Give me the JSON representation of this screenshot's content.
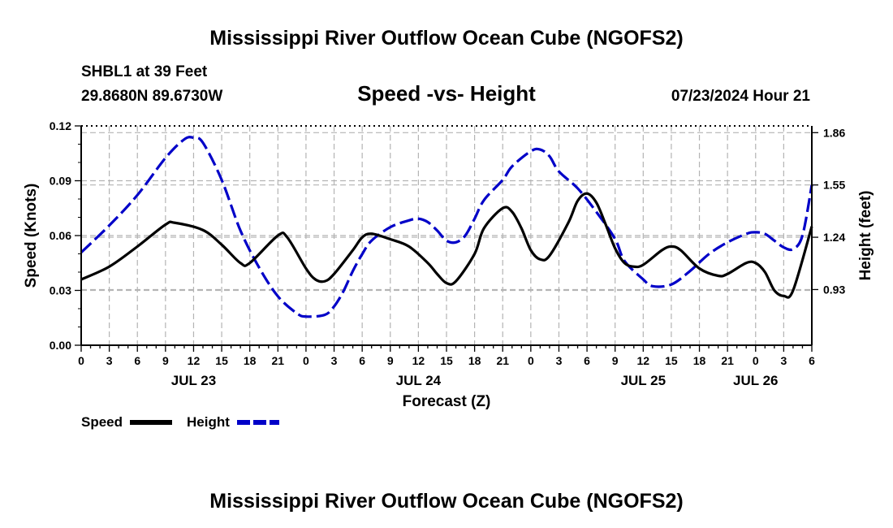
{
  "page": {
    "title": "Mississippi River Outflow Ocean Cube (NGOFS2)",
    "footer_title": "Mississippi River Outflow Ocean Cube (NGOFS2)"
  },
  "station": {
    "name": "SHBL1 at 39 Feet",
    "coords": "29.8680N  89.6730W",
    "datetime": "07/23/2024 Hour 21"
  },
  "chart_data": {
    "type": "line",
    "title": "Speed -vs- Height",
    "xlabel": "Forecast (Z)",
    "ylabel_left": "Speed (Knots)",
    "ylabel_right": "Height (feet)",
    "x_range_hours": [
      0,
      78
    ],
    "x_tick_step_hours": 3,
    "x_tick_labels": [
      "0",
      "3",
      "6",
      "9",
      "12",
      "15",
      "18",
      "21",
      "0",
      "3",
      "6",
      "9",
      "12",
      "15",
      "18",
      "21",
      "0",
      "3",
      "6",
      "9",
      "12",
      "15",
      "18",
      "21",
      "0",
      "3",
      "6"
    ],
    "date_labels": [
      {
        "label": "JUL 23",
        "hour": 12
      },
      {
        "label": "JUL 24",
        "hour": 36
      },
      {
        "label": "JUL 25",
        "hour": 60
      },
      {
        "label": "JUL 26",
        "hour": 72
      }
    ],
    "y_left": {
      "range": [
        0,
        0.12
      ],
      "ticks": [
        "0.00",
        "0.03",
        "0.06",
        "0.09",
        "0.12"
      ]
    },
    "y_right": {
      "range": [
        0.6,
        1.9
      ],
      "ticks": [
        "0.93",
        "1.24",
        "1.55",
        "1.86"
      ]
    },
    "series": [
      {
        "name": "Speed",
        "axis": "left",
        "color": "#000000",
        "dash": "solid",
        "points": [
          [
            0,
            0.036
          ],
          [
            3,
            0.043
          ],
          [
            6,
            0.054
          ],
          [
            9,
            0.066
          ],
          [
            10,
            0.067
          ],
          [
            13,
            0.063
          ],
          [
            15,
            0.055
          ],
          [
            17,
            0.045
          ],
          [
            18,
            0.045
          ],
          [
            21,
            0.06
          ],
          [
            22,
            0.059
          ],
          [
            24,
            0.042
          ],
          [
            25,
            0.036
          ],
          [
            26,
            0.035
          ],
          [
            27,
            0.039
          ],
          [
            29,
            0.052
          ],
          [
            30,
            0.059
          ],
          [
            31,
            0.061
          ],
          [
            33,
            0.058
          ],
          [
            35,
            0.054
          ],
          [
            37,
            0.045
          ],
          [
            38,
            0.039
          ],
          [
            39,
            0.034
          ],
          [
            40,
            0.035
          ],
          [
            42,
            0.05
          ],
          [
            43,
            0.064
          ],
          [
            45,
            0.075
          ],
          [
            46,
            0.073
          ],
          [
            47,
            0.064
          ],
          [
            48,
            0.052
          ],
          [
            49,
            0.047
          ],
          [
            50,
            0.049
          ],
          [
            52,
            0.067
          ],
          [
            53,
            0.079
          ],
          [
            54,
            0.083
          ],
          [
            55,
            0.078
          ],
          [
            56,
            0.066
          ],
          [
            57,
            0.053
          ],
          [
            58,
            0.045
          ],
          [
            59,
            0.043
          ],
          [
            60,
            0.044
          ],
          [
            62,
            0.052
          ],
          [
            63,
            0.054
          ],
          [
            64,
            0.052
          ],
          [
            66,
            0.042
          ],
          [
            68,
            0.038
          ],
          [
            69,
            0.039
          ],
          [
            71,
            0.045
          ],
          [
            72,
            0.045
          ],
          [
            73,
            0.04
          ],
          [
            74,
            0.03
          ],
          [
            75,
            0.027
          ],
          [
            76,
            0.03
          ],
          [
            78,
            0.065
          ]
        ]
      },
      {
        "name": "Height",
        "axis": "right",
        "color": "#0000c8",
        "dash": "dashed",
        "points": [
          [
            0,
            1.15
          ],
          [
            3,
            1.31
          ],
          [
            6,
            1.49
          ],
          [
            9,
            1.71
          ],
          [
            11,
            1.82
          ],
          [
            12,
            1.83
          ],
          [
            13,
            1.8
          ],
          [
            15,
            1.58
          ],
          [
            17,
            1.28
          ],
          [
            19,
            1.06
          ],
          [
            21,
            0.89
          ],
          [
            23,
            0.79
          ],
          [
            24,
            0.77
          ],
          [
            26,
            0.78
          ],
          [
            27,
            0.83
          ],
          [
            28,
            0.92
          ],
          [
            29,
            1.04
          ],
          [
            30,
            1.14
          ],
          [
            31,
            1.22
          ],
          [
            33,
            1.3
          ],
          [
            35,
            1.34
          ],
          [
            36,
            1.35
          ],
          [
            37,
            1.33
          ],
          [
            38,
            1.28
          ],
          [
            39,
            1.22
          ],
          [
            40,
            1.21
          ],
          [
            41,
            1.25
          ],
          [
            42,
            1.35
          ],
          [
            43,
            1.46
          ],
          [
            45,
            1.58
          ],
          [
            46,
            1.66
          ],
          [
            48,
            1.75
          ],
          [
            49,
            1.76
          ],
          [
            50,
            1.72
          ],
          [
            51,
            1.63
          ],
          [
            53,
            1.53
          ],
          [
            55,
            1.39
          ],
          [
            57,
            1.23
          ],
          [
            58,
            1.1
          ],
          [
            60,
            0.99
          ],
          [
            61,
            0.95
          ],
          [
            63,
            0.96
          ],
          [
            65,
            1.04
          ],
          [
            67,
            1.14
          ],
          [
            69,
            1.21
          ],
          [
            71,
            1.26
          ],
          [
            72,
            1.27
          ],
          [
            73,
            1.26
          ],
          [
            74,
            1.22
          ],
          [
            75,
            1.18
          ],
          [
            76,
            1.17
          ],
          [
            77,
            1.25
          ],
          [
            78,
            1.55
          ]
        ]
      }
    ],
    "legend": [
      {
        "label": "Speed",
        "color": "#000000",
        "dash": "solid"
      },
      {
        "label": "Height",
        "color": "#0000c8",
        "dash": "dashed"
      }
    ],
    "grid": true,
    "legend_position": "bottom-left"
  }
}
